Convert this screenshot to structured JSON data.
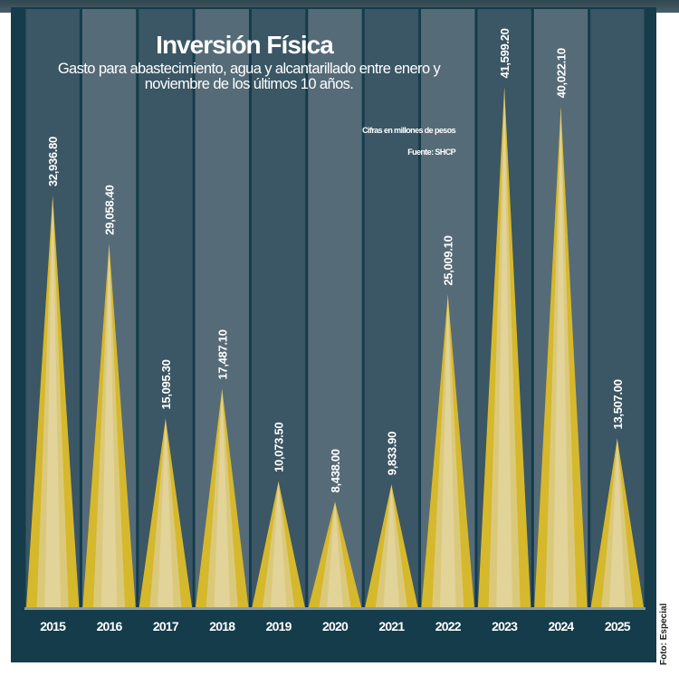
{
  "chart_data": {
    "type": "bar",
    "title": "Inversión Física",
    "subtitle": "Gasto para abastecimiento, agua y alcantarillado entre enero y noviembre de los últimos 10 años.",
    "units_note": "Cifras en millones de pesos",
    "source": "Fuente: SHCP",
    "categories": [
      "2015",
      "2016",
      "2017",
      "2018",
      "2019",
      "2020",
      "2021",
      "2022",
      "2023",
      "2024",
      "2025"
    ],
    "values": [
      32936.8,
      29058.4,
      15095.3,
      17487.1,
      10073.5,
      8438.0,
      9833.9,
      25009.1,
      41599.2,
      40022.1,
      13507.0
    ],
    "value_labels": [
      "32,936.80",
      "29,058.40",
      "15,095.30",
      "17,487.10",
      "10,073.50",
      "8,438.00",
      "9,833.90",
      "25,009.10",
      "41,599.20",
      "40,022.10",
      "13,507.00"
    ],
    "xlabel": "",
    "ylabel": "",
    "ylim": [
      0,
      42000
    ],
    "grid": false,
    "colors": {
      "panel": "#143c4b",
      "column_dark": "#3b5664",
      "column_light": "#566b78",
      "spike_outer": "#d6b82c",
      "spike_inner": "#dccb8a"
    }
  },
  "credit": "Foto: Especial"
}
